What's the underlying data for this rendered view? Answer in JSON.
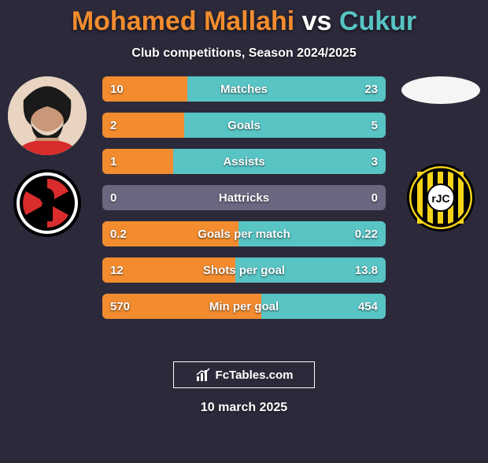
{
  "title": {
    "player1": "Mohamed Mallahi",
    "vs": " vs ",
    "player2": "Cukur",
    "player1_color": "#f28c2f",
    "vs_color": "#ffffff",
    "player2_color": "#58c4c4"
  },
  "subtitle": "Club competitions, Season 2024/2025",
  "colors": {
    "background": "#2c2a3a",
    "bar_left": "#f28c2f",
    "bar_right": "#58c4c4",
    "bar_neutral": "#6a6880"
  },
  "player1_avatar": {
    "type": "photo",
    "bg": "#e8d4c0"
  },
  "player2_avatar": {
    "type": "blank",
    "bg": "#f5f5f5"
  },
  "club1_logo": {
    "bg": "#000000",
    "accent": "#d92c2c"
  },
  "club2_logo": {
    "bg": "#f5d418",
    "accent": "#000000",
    "text": "rJC"
  },
  "stats": [
    {
      "label": "Matches",
      "left_val": "10",
      "right_val": "23",
      "left_pct": 30,
      "right_pct": 70
    },
    {
      "label": "Goals",
      "left_val": "2",
      "right_val": "5",
      "left_pct": 29,
      "right_pct": 71
    },
    {
      "label": "Assists",
      "left_val": "1",
      "right_val": "3",
      "left_pct": 25,
      "right_pct": 75
    },
    {
      "label": "Hattricks",
      "left_val": "0",
      "right_val": "0",
      "left_pct": 0,
      "right_pct": 0
    },
    {
      "label": "Goals per match",
      "left_val": "0.2",
      "right_val": "0.22",
      "left_pct": 48,
      "right_pct": 52
    },
    {
      "label": "Shots per goal",
      "left_val": "12",
      "right_val": "13.8",
      "left_pct": 47,
      "right_pct": 53
    },
    {
      "label": "Min per goal",
      "left_val": "570",
      "right_val": "454",
      "left_pct": 56,
      "right_pct": 44
    }
  ],
  "footer_brand": "FcTables.com",
  "footer_date": "10 march 2025"
}
